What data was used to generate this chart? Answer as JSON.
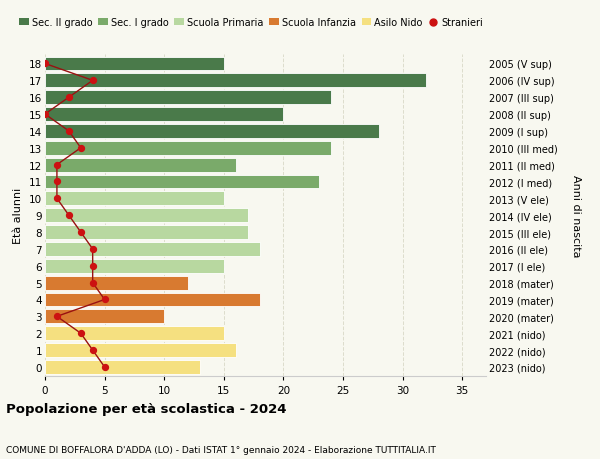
{
  "ages": [
    18,
    17,
    16,
    15,
    14,
    13,
    12,
    11,
    10,
    9,
    8,
    7,
    6,
    5,
    4,
    3,
    2,
    1,
    0
  ],
  "years": [
    "2005 (V sup)",
    "2006 (IV sup)",
    "2007 (III sup)",
    "2008 (II sup)",
    "2009 (I sup)",
    "2010 (III med)",
    "2011 (II med)",
    "2012 (I med)",
    "2013 (V ele)",
    "2014 (IV ele)",
    "2015 (III ele)",
    "2016 (II ele)",
    "2017 (I ele)",
    "2018 (mater)",
    "2019 (mater)",
    "2020 (mater)",
    "2021 (nido)",
    "2022 (nido)",
    "2023 (nido)"
  ],
  "bar_values": [
    15,
    32,
    24,
    20,
    28,
    24,
    16,
    23,
    15,
    17,
    17,
    18,
    15,
    12,
    18,
    10,
    15,
    16,
    13
  ],
  "stranieri": [
    0,
    4,
    2,
    0,
    2,
    3,
    1,
    1,
    1,
    2,
    3,
    4,
    4,
    4,
    5,
    1,
    3,
    4,
    5
  ],
  "bar_colors": [
    "#4a7a4a",
    "#4a7a4a",
    "#4a7a4a",
    "#4a7a4a",
    "#4a7a4a",
    "#7aaa6a",
    "#7aaa6a",
    "#7aaa6a",
    "#b8d8a0",
    "#b8d8a0",
    "#b8d8a0",
    "#b8d8a0",
    "#b8d8a0",
    "#d87a30",
    "#d87a30",
    "#d87a30",
    "#f5e080",
    "#f5e080",
    "#f5e080"
  ],
  "legend_labels": [
    "Sec. II grado",
    "Sec. I grado",
    "Scuola Primaria",
    "Scuola Infanzia",
    "Asilo Nido",
    "Stranieri"
  ],
  "legend_colors": [
    "#4a7a4a",
    "#7aaa6a",
    "#b8d8a0",
    "#d87a30",
    "#f5e080",
    "#cc2222"
  ],
  "title": "Popolazione per età scolastica - 2024",
  "subtitle": "COMUNE DI BOFFALORA D'ADDA (LO) - Dati ISTAT 1° gennaio 2024 - Elaborazione TUTTITALIA.IT",
  "ylabel_left": "Età alunni",
  "ylabel_right": "Anni di nascita",
  "xlim": [
    0,
    37
  ],
  "ylim_min": -0.55,
  "ylim_max": 18.55,
  "bg_color": "#f8f8f0",
  "grid_color": "#ddddcc",
  "stranieri_line_color": "#991111",
  "stranieri_dot_color": "#cc1111",
  "bar_edge_color": "white",
  "bar_height": 0.82
}
